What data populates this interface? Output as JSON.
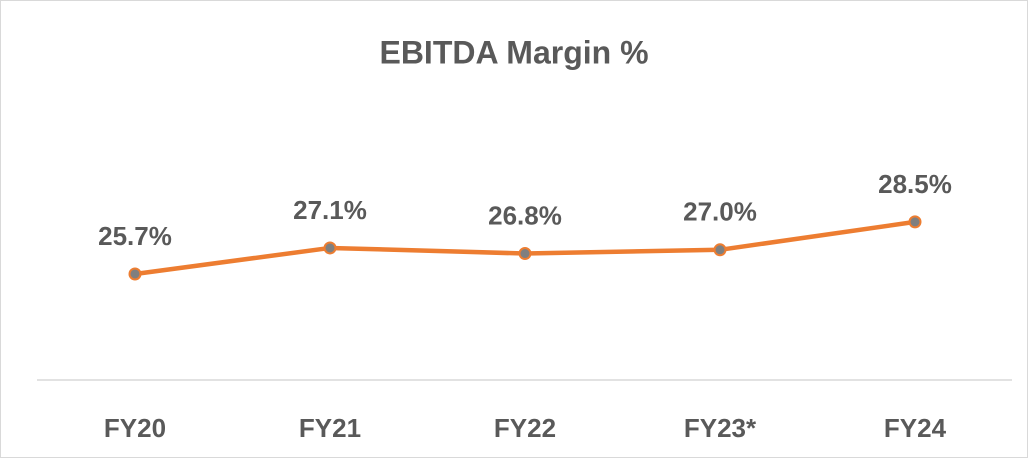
{
  "chart_data": {
    "type": "line",
    "title": "EBITDA Margin %",
    "categories": [
      "FY20",
      "FY21",
      "FY22",
      "FY23*",
      "FY24"
    ],
    "series": [
      {
        "name": "EBITDA Margin %",
        "color": "#ed7d31",
        "values": [
          25.7,
          27.1,
          26.8,
          27.0,
          28.5
        ],
        "value_labels": [
          "25.7%",
          "27.1%",
          "26.8%",
          "27.0%",
          "28.5%"
        ]
      }
    ],
    "ylim": [
      20,
      30
    ]
  }
}
